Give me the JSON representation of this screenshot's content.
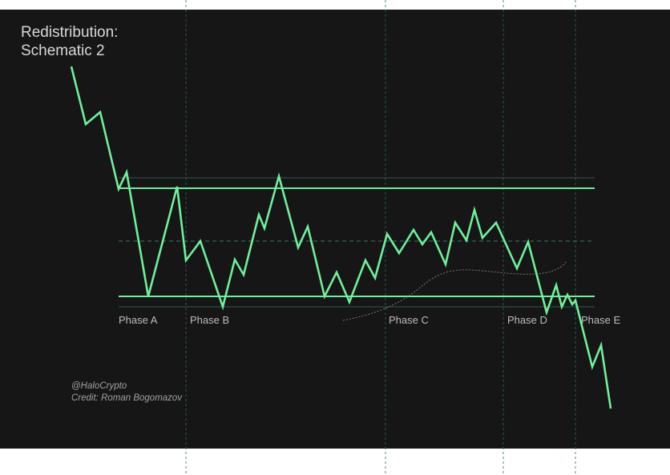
{
  "title": [
    "Redistribution:",
    "Schematic 2"
  ],
  "phases": [
    "Phase A",
    "Phase B",
    "Phase C",
    "Phase D",
    "Phase E"
  ],
  "credits": [
    "@HaloCrypto",
    "Credit: Roman Bogomazov"
  ]
}
